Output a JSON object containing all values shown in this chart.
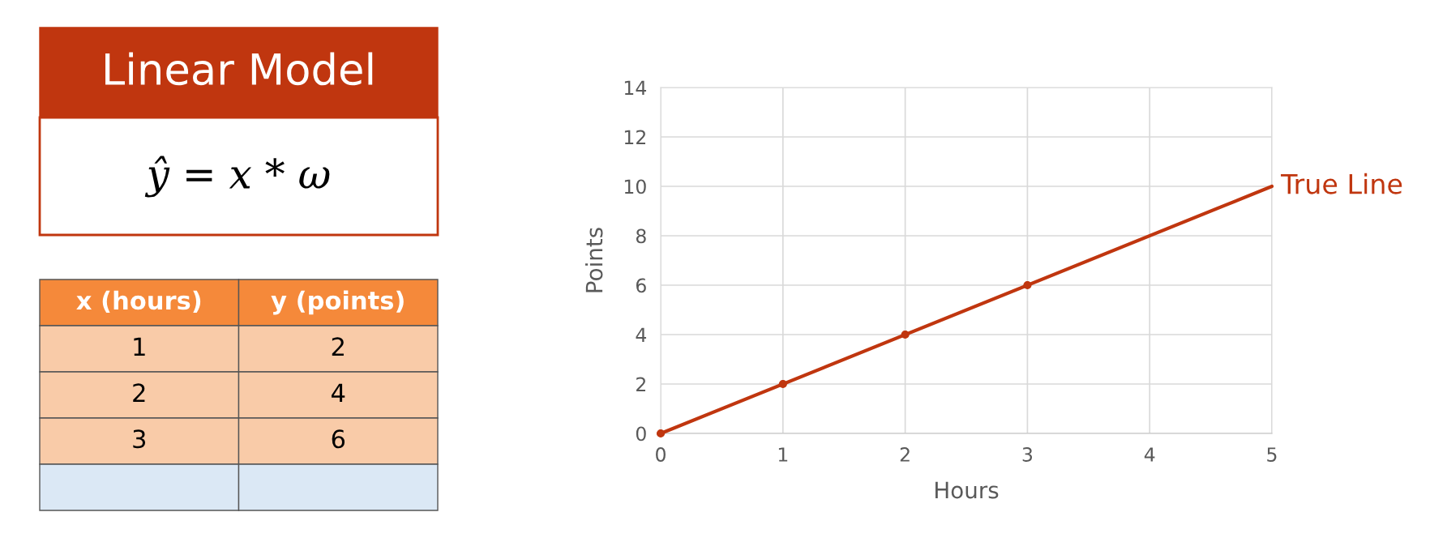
{
  "chart_data": [
    {
      "type": "other",
      "title": "Linear Model",
      "annotations": [
        "ŷ = x * ω"
      ],
      "color": "#c0360f",
      "categories": [
        "x (hours)",
        "y (points)"
      ],
      "cells": [
        [
          "1",
          "2"
        ],
        [
          "2",
          "4"
        ],
        [
          "3",
          "6"
        ],
        [
          null,
          null
        ]
      ]
    },
    {
      "type": "line",
      "xlabel": "Hours",
      "ylabel": "Points",
      "xlim": [
        0,
        5
      ],
      "ylim": [
        0,
        14
      ],
      "xticks": [
        0,
        1,
        2,
        3,
        4,
        5
      ],
      "yticks": [
        0,
        2,
        4,
        6,
        8,
        10,
        12,
        14
      ],
      "grid": true,
      "legend": false,
      "series": [
        {
          "name": "True Line",
          "color": "#c0360f",
          "x": [
            0,
            5
          ],
          "values": [
            0,
            10
          ],
          "marker": "none"
        },
        {
          "type": "scatter",
          "color": "#c0360f",
          "x": [
            0,
            1,
            2,
            3
          ],
          "values": [
            0,
            2,
            4,
            6
          ],
          "marker": "circle"
        }
      ]
    }
  ]
}
